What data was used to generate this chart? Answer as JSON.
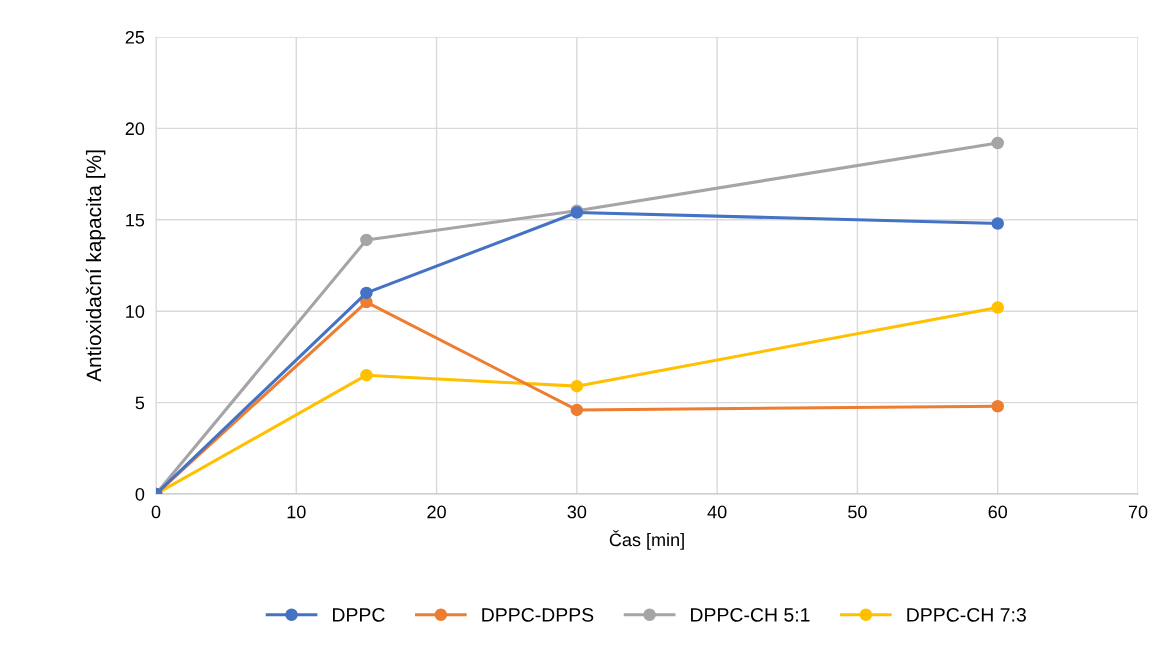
{
  "chart_data": {
    "type": "line",
    "xlabel": "Čas [min]",
    "ylabel": "Antioxidační kapacita [%]",
    "x": [
      0,
      15,
      30,
      60
    ],
    "series": [
      {
        "name": "DPPC",
        "color": "#4472c4",
        "values": [
          0,
          11.0,
          15.4,
          14.8
        ]
      },
      {
        "name": "DPPC-DPPS",
        "color": "#ed7d31",
        "values": [
          0,
          10.5,
          4.6,
          4.8
        ]
      },
      {
        "name": "DPPC-CH 5:1",
        "color": "#a5a5a5",
        "values": [
          0,
          13.9,
          15.5,
          19.2
        ]
      },
      {
        "name": "DPPC-CH 7:3",
        "color": "#ffc000",
        "values": [
          0,
          6.5,
          5.9,
          10.2
        ]
      }
    ],
    "xlim": [
      0,
      70
    ],
    "xticks": [
      0,
      10,
      20,
      30,
      40,
      50,
      60,
      70
    ],
    "ylim": [
      0,
      25
    ],
    "yticks": [
      0,
      5,
      10,
      15,
      20,
      25
    ],
    "grid": true,
    "legend": "bottom",
    "marker": "circle",
    "line_style": "solid"
  }
}
